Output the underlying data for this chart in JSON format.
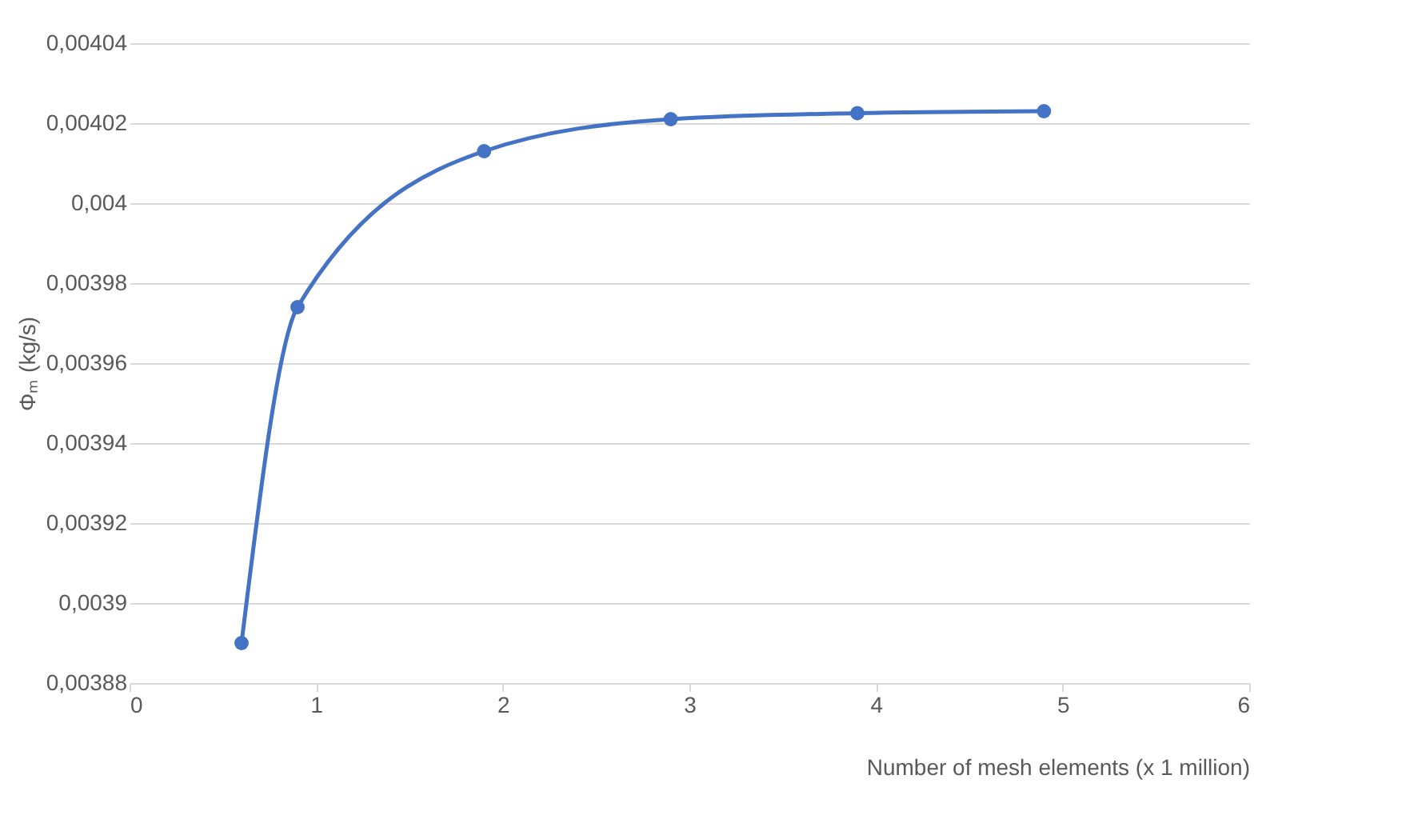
{
  "chart_data": {
    "type": "line",
    "xlabel": "Number of mesh elements (x 1 million)",
    "ylabel": "Φₘ  (kg/s)",
    "x": [
      0.6,
      0.9,
      1.9,
      2.9,
      3.9,
      4.9
    ],
    "series": [
      {
        "color": "#4472c4",
        "values": [
          0.00389,
          0.003974,
          0.004013,
          0.004021,
          0.0040225,
          0.004023
        ]
      }
    ],
    "xlim": [
      0,
      6
    ],
    "xticks": [
      0,
      1,
      2,
      3,
      4,
      5,
      6
    ],
    "ylim": [
      0.00388,
      0.00404
    ],
    "yticks": [
      {
        "value": 0.00388,
        "label": "0,00388"
      },
      {
        "value": 0.0039,
        "label": "0,0039"
      },
      {
        "value": 0.00392,
        "label": "0,00392"
      },
      {
        "value": 0.00394,
        "label": "0,00394"
      },
      {
        "value": 0.00396,
        "label": "0,00396"
      },
      {
        "value": 0.00398,
        "label": "0,00398"
      },
      {
        "value": 0.004,
        "label": "0,004"
      },
      {
        "value": 0.00402,
        "label": "0,00402"
      },
      {
        "value": 0.00404,
        "label": "0,00404"
      }
    ],
    "grid": "y",
    "marker": "circle",
    "line_style": "solid"
  }
}
